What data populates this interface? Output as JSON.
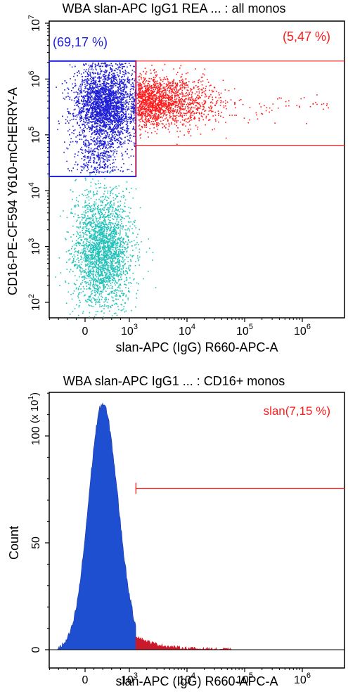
{
  "chart_data": [
    {
      "type": "scatter",
      "title": "WBA slan-APC IgG1 REA ... : all monos",
      "xlabel": "slan-APC (IgG) R660-APC-A",
      "ylabel": "CD16-PE-CF594 Y610-mCHERRY-A",
      "x_scale": "biexponential",
      "y_scale": "log",
      "x_ticks": [
        {
          "label": "0",
          "value": 0
        },
        {
          "label": "10",
          "exp": "3",
          "value": 1000
        },
        {
          "label": "10",
          "exp": "4",
          "value": 10000
        },
        {
          "label": "10",
          "exp": "5",
          "value": 100000
        },
        {
          "label": "10",
          "exp": "6",
          "value": 1000000
        }
      ],
      "y_ticks": [
        {
          "label": "10",
          "exp": "2",
          "value": 100
        },
        {
          "label": "10",
          "exp": "3",
          "value": 1000
        },
        {
          "label": "10",
          "exp": "4",
          "value": 10000
        },
        {
          "label": "10",
          "exp": "5",
          "value": 100000
        },
        {
          "label": "10",
          "exp": "6",
          "value": 1000000
        },
        {
          "label": "10",
          "exp": "7",
          "value": 10000000
        }
      ],
      "xlim": [
        -1000,
        5000000
      ],
      "ylim": [
        70,
        10000000
      ],
      "gates": [
        {
          "label": "(69,17 %)",
          "color": "#1f1fd6",
          "x_range": [
            -1000,
            1300
          ],
          "y_range": [
            18000,
            2100000
          ]
        },
        {
          "label": "(5,47 %)",
          "color": "#ff1a1a",
          "x_range": [
            1300,
            5000000
          ],
          "y_range": [
            65000,
            2100000
          ]
        }
      ],
      "series": [
        {
          "color": "#1f1fd6",
          "x_center": 150,
          "y_center": 300000
        },
        {
          "color": "#ff1a1a",
          "x_center": 8000,
          "y_center": 450000
        },
        {
          "color": "#21c1b9",
          "x_center": 200,
          "y_center": 1000
        }
      ],
      "grid": false
    },
    {
      "type": "area",
      "title": "WBA slan-APC IgG1 ... : CD16+ monos",
      "xlabel": "slan-APC (IgG) R660-APC-A",
      "ylabel": "Count",
      "y_multiplier_label": "(x 10",
      "y_multiplier_exp": "1",
      "x_scale": "biexponential",
      "x_ticks": [
        {
          "label": "0",
          "value": 0
        },
        {
          "label": "10",
          "exp": "3",
          "value": 1000
        },
        {
          "label": "10",
          "exp": "4",
          "value": 10000
        },
        {
          "label": "10",
          "exp": "5",
          "value": 100000
        },
        {
          "label": "10",
          "exp": "6",
          "value": 1000000
        }
      ],
      "y_ticks": [
        {
          "label": "0",
          "value": 0
        },
        {
          "label": "50",
          "value": 50
        },
        {
          "label": "100",
          "value": 100
        }
      ],
      "ylim": [
        0,
        125
      ],
      "gate": {
        "label": "slan(7,15 %)",
        "color": "#ff1a1a",
        "x_range": [
          1300,
          5000000
        ]
      },
      "series": [
        {
          "color": "#1e4fd0",
          "peak_x": 300,
          "peak_count": 115
        },
        {
          "color": "#c81a2a",
          "x_from": 1300
        }
      ]
    }
  ]
}
